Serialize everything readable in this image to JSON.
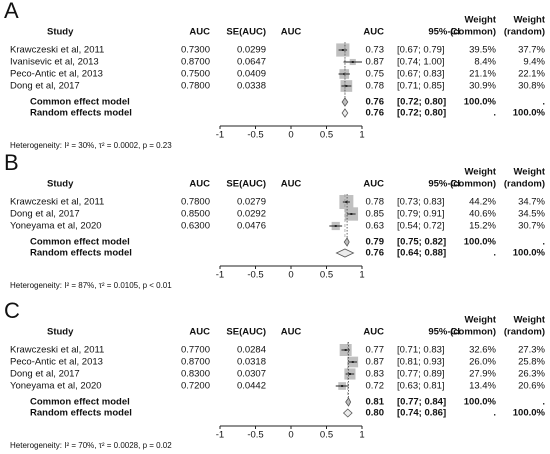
{
  "chart_data": [
    {
      "type": "forest",
      "label": "A",
      "columns": {
        "study": "Study",
        "auc": "AUC",
        "se": "SE(AUC)",
        "weight": "Weight",
        "ci": "95%-CI",
        "common": "(common)",
        "random": "(random)"
      },
      "studies": [
        "Krawczeski et al, 2011",
        "Ivanisevic et al, 2013",
        "Peco-Antic et al, 2013",
        "Dong et al, 2017"
      ],
      "auc": {
        "values": [
          0.73,
          0.87,
          0.75,
          0.78
        ],
        "value_labels": [
          "0.7300",
          "0.8700",
          "0.7500",
          "0.7800"
        ]
      },
      "se": [
        0.0299,
        0.0647,
        0.0409,
        0.0338
      ],
      "ci_lower": [
        0.67,
        0.74,
        0.67,
        0.71
      ],
      "ci_upper": [
        0.79,
        1,
        0.83,
        0.85
      ],
      "ci_labels": [
        "[0.67; 0.79]",
        "[0.74; 1.00]",
        "[0.67; 0.83]",
        "[0.71; 0.85]"
      ],
      "weight_common": {
        "values": [
          39.5,
          8.4,
          21.1,
          30.9
        ],
        "value_labels": [
          "39.5%",
          "8.4%",
          "21.1%",
          "30.9%"
        ]
      },
      "weight_random": {
        "values": [
          37.7,
          9.4,
          22.1,
          30.8
        ],
        "value_labels": [
          "37.7%",
          "9.4%",
          "22.1%",
          "30.8%"
        ]
      },
      "common": {
        "name": "Common effect model",
        "auc": 0.76,
        "auc_label": "0.76",
        "ci_lower": 0.72,
        "ci_upper": 0.8,
        "ci_label": "[0.72; 0.80]",
        "weight_common": "100.0%",
        "weight_random": "."
      },
      "random": {
        "name": "Random effects model",
        "auc": 0.76,
        "auc_label": "0.76",
        "ci_lower": 0.72,
        "ci_upper": 0.8,
        "ci_label": "[0.72; 0.80]",
        "weight_common": ".",
        "weight_random": "100.0%"
      },
      "heterogeneity": "Heterogeneity: I² = 30%, τ² = 0.0002, p = 0.23",
      "xlim": [
        -1,
        1
      ],
      "xticks": [
        -1,
        -0.5,
        0,
        0.5,
        1
      ]
    },
    {
      "type": "forest",
      "label": "B",
      "columns": {
        "study": "Study",
        "auc": "AUC",
        "se": "SE(AUC)",
        "weight": "Weight",
        "ci": "95%-CI",
        "common": "(common)",
        "random": "(random)"
      },
      "studies": [
        "Krawczeski et al, 2011",
        "Dong et al, 2017",
        "Yoneyama et al, 2020"
      ],
      "auc": {
        "values": [
          0.78,
          0.85,
          0.63
        ],
        "value_labels": [
          "0.7800",
          "0.8500",
          "0.6300"
        ]
      },
      "se": [
        0.0279,
        0.0292,
        0.0476
      ],
      "ci_lower": [
        0.73,
        0.79,
        0.54
      ],
      "ci_upper": [
        0.83,
        0.91,
        0.72
      ],
      "ci_labels": [
        "[0.73; 0.83]",
        "[0.79; 0.91]",
        "[0.54; 0.72]"
      ],
      "weight_common": {
        "values": [
          44.2,
          40.6,
          15.2
        ],
        "value_labels": [
          "44.2%",
          "40.6%",
          "15.2%"
        ]
      },
      "weight_random": {
        "values": [
          34.7,
          34.5,
          30.7
        ],
        "value_labels": [
          "34.7%",
          "34.5%",
          "30.7%"
        ]
      },
      "common": {
        "name": "Common effect model",
        "auc": 0.79,
        "auc_label": "0.79",
        "ci_lower": 0.75,
        "ci_upper": 0.82,
        "ci_label": "[0.75; 0.82]",
        "weight_common": "100.0%",
        "weight_random": "."
      },
      "random": {
        "name": "Random effects model",
        "auc": 0.76,
        "auc_label": "0.76",
        "ci_lower": 0.64,
        "ci_upper": 0.88,
        "ci_label": "[0.64; 0.88]",
        "weight_common": ".",
        "weight_random": "100.0%"
      },
      "heterogeneity": "Heterogeneity: I² = 87%, τ² = 0.0105, p < 0.01",
      "xlim": [
        -1,
        1
      ],
      "xticks": [
        -1,
        -0.5,
        0,
        0.5,
        1
      ]
    },
    {
      "type": "forest",
      "label": "C",
      "columns": {
        "study": "Study",
        "auc": "AUC",
        "se": "SE(AUC)",
        "weight": "Weight",
        "ci": "95%-CI",
        "common": "(common)",
        "random": "(random)"
      },
      "studies": [
        "Krawczeski et al, 2011",
        "Peco-Antic et al, 2013",
        "Dong et al, 2017",
        "Yoneyama et al, 2020"
      ],
      "auc": {
        "values": [
          0.77,
          0.87,
          0.83,
          0.72
        ],
        "value_labels": [
          "0.7700",
          "0.8700",
          "0.8300",
          "0.7200"
        ]
      },
      "se": [
        0.0284,
        0.0318,
        0.0307,
        0.0442
      ],
      "ci_lower": [
        0.71,
        0.81,
        0.77,
        0.63
      ],
      "ci_upper": [
        0.83,
        0.93,
        0.89,
        0.81
      ],
      "ci_labels": [
        "[0.71; 0.83]",
        "[0.81; 0.93]",
        "[0.77; 0.89]",
        "[0.63; 0.81]"
      ],
      "weight_common": {
        "values": [
          32.6,
          26,
          27.9,
          13.4
        ],
        "value_labels": [
          "32.6%",
          "26.0%",
          "27.9%",
          "13.4%"
        ]
      },
      "weight_random": {
        "values": [
          27.3,
          25.8,
          26.3,
          20.6
        ],
        "value_labels": [
          "27.3%",
          "25.8%",
          "26.3%",
          "20.6%"
        ]
      },
      "common": {
        "name": "Common effect model",
        "auc": 0.81,
        "auc_label": "0.81",
        "ci_lower": 0.77,
        "ci_upper": 0.84,
        "ci_label": "[0.77; 0.84]",
        "weight_common": "100.0%",
        "weight_random": "."
      },
      "random": {
        "name": "Random effects model",
        "auc": 0.8,
        "auc_label": "0.80",
        "ci_lower": 0.74,
        "ci_upper": 0.86,
        "ci_label": "[0.74; 0.86]",
        "weight_common": ".",
        "weight_random": "100.0%"
      },
      "heterogeneity": "Heterogeneity: I² = 70%, τ² = 0.0028, p = 0.02",
      "xlim": [
        -1,
        1
      ],
      "xticks": [
        -1,
        -0.5,
        0,
        0.5,
        1
      ]
    }
  ]
}
